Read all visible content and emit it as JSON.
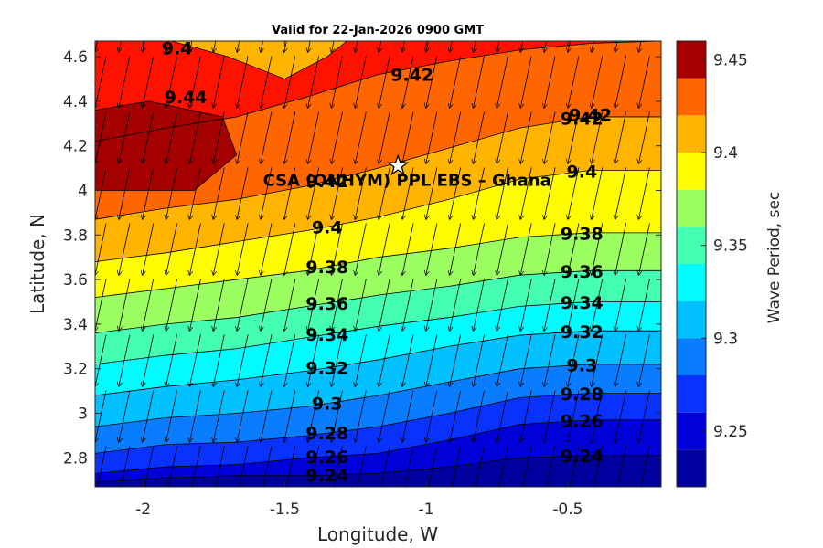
{
  "chart_data": {
    "type": "contour",
    "title": "Valid for 22-Jan-2026 0900 GMT",
    "xlabel": "Longitude, W",
    "ylabel": "Latitude, N",
    "xlim": [
      -2.17,
      -0.17
    ],
    "ylim": [
      2.67,
      4.67
    ],
    "x_ticks": [
      -2,
      -1.5,
      -1,
      -0.5
    ],
    "x_tick_labels": [
      "-2",
      "-1.5",
      "-1",
      "-0.5"
    ],
    "y_ticks": [
      2.8,
      3.0,
      3.2,
      3.4,
      3.6,
      3.8,
      4.0,
      4.2,
      4.4,
      4.6
    ],
    "y_tick_labels": [
      "2.8",
      "3",
      "3.2",
      "3.4",
      "3.6",
      "3.8",
      "4",
      "4.2",
      "4.4",
      "4.6"
    ],
    "colorbar": {
      "label": "Wave Period, sec",
      "range": [
        9.22,
        9.46
      ],
      "ticks": [
        9.25,
        9.3,
        9.35,
        9.4,
        9.45
      ],
      "tick_labels": [
        "9.25",
        "9.3",
        "9.35",
        "9.4",
        "9.45"
      ],
      "levels": [
        9.22,
        9.23,
        9.24,
        9.25,
        9.26,
        9.27,
        9.28,
        9.29,
        9.3,
        9.31,
        9.32,
        9.33,
        9.34,
        9.35,
        9.36,
        9.37,
        9.38,
        9.39,
        9.4,
        9.41,
        9.42,
        9.43,
        9.44,
        9.45,
        9.46
      ]
    },
    "band_colors": [
      "#00009f",
      "#0000d8",
      "#0a32ff",
      "#0a7cff",
      "#00c0ff",
      "#00fcff",
      "#44ffb2",
      "#9bff62",
      "#fffc00",
      "#ffb400",
      "#ff6600",
      "#ff1200",
      "#a50000"
    ],
    "contour_levels": [
      {
        "value": 9.24,
        "label": "9.24",
        "lats": [
          2.69,
          2.71,
          2.72,
          2.72,
          2.73,
          2.76,
          2.8,
          2.81,
          2.81
        ]
      },
      {
        "value": 9.26,
        "label": "9.26",
        "lats": [
          2.73,
          2.76,
          2.77,
          2.8,
          2.82,
          2.88,
          2.95,
          2.97,
          2.97
        ]
      },
      {
        "value": 9.28,
        "label": "9.28",
        "lats": [
          2.82,
          2.86,
          2.87,
          2.9,
          2.94,
          3.0,
          3.07,
          3.09,
          3.09
        ]
      },
      {
        "value": 9.3,
        "label": "9.3",
        "lats": [
          2.94,
          2.98,
          3.0,
          3.03,
          3.08,
          3.14,
          3.2,
          3.22,
          3.22
        ]
      },
      {
        "value": 9.32,
        "label": "9.32",
        "lats": [
          3.08,
          3.12,
          3.15,
          3.19,
          3.24,
          3.3,
          3.35,
          3.37,
          3.37
        ]
      },
      {
        "value": 9.34,
        "label": "9.34",
        "lats": [
          3.22,
          3.26,
          3.29,
          3.34,
          3.39,
          3.43,
          3.48,
          3.5,
          3.5
        ]
      },
      {
        "value": 9.36,
        "label": "9.36",
        "lats": [
          3.36,
          3.4,
          3.43,
          3.48,
          3.53,
          3.57,
          3.62,
          3.64,
          3.64
        ]
      },
      {
        "value": 9.38,
        "label": "9.38",
        "lats": [
          3.52,
          3.56,
          3.6,
          3.64,
          3.7,
          3.74,
          3.79,
          3.81,
          3.81
        ]
      },
      {
        "value": 9.4,
        "label": "9.4",
        "lats": [
          3.68,
          3.72,
          3.77,
          3.82,
          3.88,
          3.96,
          4.05,
          4.09,
          4.09
        ]
      },
      {
        "value": 9.42,
        "label": "9.42",
        "lats": [
          3.87,
          3.92,
          3.96,
          4.02,
          4.1,
          4.19,
          4.28,
          4.33,
          4.33
        ]
      },
      {
        "value": 9.44,
        "label": "9.44",
        "lats": [
          4.22,
          4.28,
          4.33,
          4.42,
          4.52,
          4.58,
          4.63,
          4.66,
          4.67
        ]
      }
    ],
    "contour_xs": [
      -2.17,
      -1.92,
      -1.67,
      -1.42,
      -1.17,
      -0.92,
      -0.67,
      -0.42,
      -0.17
    ],
    "arrow_direction_deg": 168,
    "site": {
      "name": "CSA (ONHYM) PPL EBS  – Ghana",
      "lon": -1.1,
      "lat": 4.11
    }
  }
}
